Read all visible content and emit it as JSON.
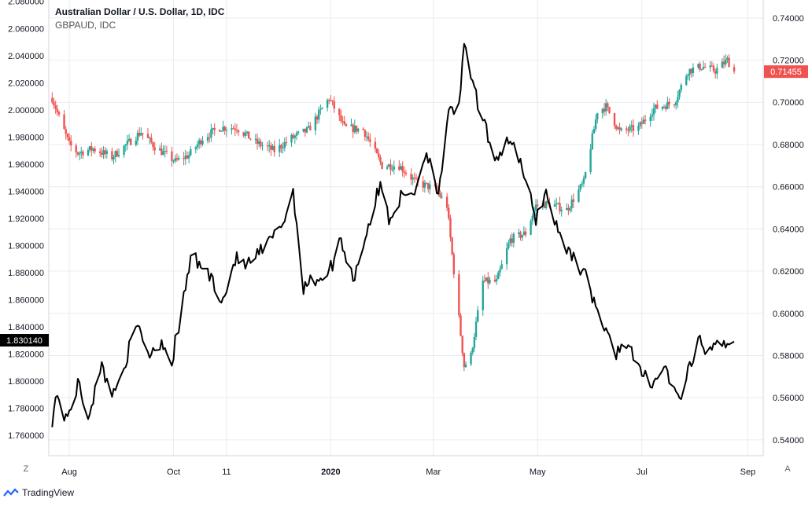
{
  "legend": {
    "title": "Australian Dollar / U.S. Dollar, 1D, IDC",
    "subtitle": "GBPAUD, IDC"
  },
  "brand": {
    "name": "TradingView"
  },
  "corner_buttons": {
    "left": "Z",
    "right": "A"
  },
  "colors": {
    "up": "#26a69a",
    "down": "#ef5350",
    "line": "#000000",
    "grid": "#e9ecf2",
    "price_badge": "#ef5350",
    "left_badge": "#000000"
  },
  "chart_data": {
    "type": "line",
    "x_ticks": [
      "Aug",
      "Oct",
      "11",
      "2020",
      "Mar",
      "May",
      "Jul",
      "Sep"
    ],
    "left_axis": {
      "ticks": [
        "2.080000",
        "2.060000",
        "2.040000",
        "2.020000",
        "2.000000",
        "1.980000",
        "1.960000",
        "1.940000",
        "1.920000",
        "1.900000",
        "1.880000",
        "1.860000",
        "1.840000",
        "1.820000",
        "1.800000",
        "1.780000",
        "1.760000"
      ],
      "ylim": [
        1.745,
        2.081
      ],
      "last_value_label": "1.830140"
    },
    "right_axis": {
      "ticks": [
        "0.74000",
        "0.72000",
        "0.70000",
        "0.68000",
        "0.66000",
        "0.64000",
        "0.62000",
        "0.60000",
        "0.58000",
        "0.56000",
        "0.54000"
      ],
      "ylim": [
        0.5325,
        0.7485
      ],
      "last_value_label": "0.71455"
    },
    "series": [
      {
        "name": "Australian Dollar / U.S. Dollar",
        "style": "candlestick",
        "axis": "right",
        "close_path": [
          [
            "2019-07-22",
            0.702
          ],
          [
            "2019-07-26",
            0.693
          ],
          [
            "2019-08-01",
            0.68
          ],
          [
            "2019-08-06",
            0.676
          ],
          [
            "2019-08-15",
            0.678
          ],
          [
            "2019-08-26",
            0.674
          ],
          [
            "2019-09-05",
            0.681
          ],
          [
            "2019-09-12",
            0.686
          ],
          [
            "2019-09-20",
            0.679
          ],
          [
            "2019-10-02",
            0.672
          ],
          [
            "2019-10-10",
            0.675
          ],
          [
            "2019-10-18",
            0.683
          ],
          [
            "2019-10-28",
            0.688
          ],
          [
            "2019-11-07",
            0.688
          ],
          [
            "2019-11-18",
            0.681
          ],
          [
            "2019-11-29",
            0.677
          ],
          [
            "2019-12-09",
            0.683
          ],
          [
            "2019-12-19",
            0.687
          ],
          [
            "2019-12-31",
            0.702
          ],
          [
            "2020-01-09",
            0.688
          ],
          [
            "2020-01-20",
            0.687
          ],
          [
            "2020-01-31",
            0.67
          ],
          [
            "2020-02-10",
            0.67
          ],
          [
            "2020-02-20",
            0.662
          ],
          [
            "2020-03-02",
            0.659
          ],
          [
            "2020-03-09",
            0.651
          ],
          [
            "2020-03-13",
            0.62
          ],
          [
            "2020-03-19",
            0.575
          ],
          [
            "2020-03-23",
            0.58
          ],
          [
            "2020-03-30",
            0.615
          ],
          [
            "2020-04-07",
            0.615
          ],
          [
            "2020-04-15",
            0.635
          ],
          [
            "2020-04-24",
            0.638
          ],
          [
            "2020-04-30",
            0.651
          ],
          [
            "2020-05-08",
            0.652
          ],
          [
            "2020-05-18",
            0.649
          ],
          [
            "2020-05-28",
            0.662
          ],
          [
            "2020-06-05",
            0.696
          ],
          [
            "2020-06-10",
            0.698
          ],
          [
            "2020-06-18",
            0.686
          ],
          [
            "2020-06-29",
            0.688
          ],
          [
            "2020-07-08",
            0.697
          ],
          [
            "2020-07-20",
            0.7
          ],
          [
            "2020-07-28",
            0.715
          ],
          [
            "2020-08-05",
            0.717
          ],
          [
            "2020-08-13",
            0.715
          ],
          [
            "2020-08-20",
            0.72
          ],
          [
            "2020-08-24",
            0.71455
          ]
        ]
      },
      {
        "name": "GBPAUD",
        "style": "line",
        "axis": "left",
        "path": [
          [
            "2019-07-22",
            1.772
          ],
          [
            "2019-07-25",
            1.792
          ],
          [
            "2019-07-30",
            1.77
          ],
          [
            "2019-08-06",
            1.798
          ],
          [
            "2019-08-12",
            1.775
          ],
          [
            "2019-08-20",
            1.81
          ],
          [
            "2019-08-27",
            1.79
          ],
          [
            "2019-09-04",
            1.82
          ],
          [
            "2019-09-10",
            1.84
          ],
          [
            "2019-09-17",
            1.82
          ],
          [
            "2019-09-24",
            1.83
          ],
          [
            "2019-09-30",
            1.815
          ],
          [
            "2019-10-07",
            1.86
          ],
          [
            "2019-10-11",
            1.892
          ],
          [
            "2019-10-21",
            1.88
          ],
          [
            "2019-10-30",
            1.86
          ],
          [
            "2019-11-06",
            1.89
          ],
          [
            "2019-11-13",
            1.885
          ],
          [
            "2019-11-21",
            1.895
          ],
          [
            "2019-11-28",
            1.905
          ],
          [
            "2019-12-05",
            1.92
          ],
          [
            "2019-12-10",
            1.94
          ],
          [
            "2019-12-16",
            1.87
          ],
          [
            "2019-12-23",
            1.875
          ],
          [
            "2019-12-31",
            1.88
          ],
          [
            "2020-01-07",
            1.905
          ],
          [
            "2020-01-14",
            1.875
          ],
          [
            "2020-01-22",
            1.91
          ],
          [
            "2020-01-30",
            1.945
          ],
          [
            "2020-02-04",
            1.92
          ],
          [
            "2020-02-11",
            1.935
          ],
          [
            "2020-02-19",
            1.94
          ],
          [
            "2020-02-26",
            1.97
          ],
          [
            "2020-03-04",
            1.94
          ],
          [
            "2020-03-10",
            1.995
          ],
          [
            "2020-03-16",
            2.005
          ],
          [
            "2020-03-19",
            2.045
          ],
          [
            "2020-03-23",
            2.025
          ],
          [
            "2020-03-30",
            1.99
          ],
          [
            "2020-04-07",
            1.965
          ],
          [
            "2020-04-15",
            1.98
          ],
          [
            "2020-04-22",
            1.955
          ],
          [
            "2020-04-30",
            1.92
          ],
          [
            "2020-05-06",
            1.94
          ],
          [
            "2020-05-13",
            1.91
          ],
          [
            "2020-05-20",
            1.895
          ],
          [
            "2020-05-28",
            1.88
          ],
          [
            "2020-06-03",
            1.86
          ],
          [
            "2020-06-10",
            1.835
          ],
          [
            "2020-06-15",
            1.82
          ],
          [
            "2020-06-22",
            1.83
          ],
          [
            "2020-06-30",
            1.805
          ],
          [
            "2020-07-08",
            1.8
          ],
          [
            "2020-07-15",
            1.81
          ],
          [
            "2020-07-22",
            1.785
          ],
          [
            "2020-07-28",
            1.805
          ],
          [
            "2020-08-04",
            1.83
          ],
          [
            "2020-08-10",
            1.82
          ],
          [
            "2020-08-17",
            1.83
          ],
          [
            "2020-08-24",
            1.83
          ]
        ]
      }
    ],
    "grid": true,
    "legend_position": "top-left"
  }
}
